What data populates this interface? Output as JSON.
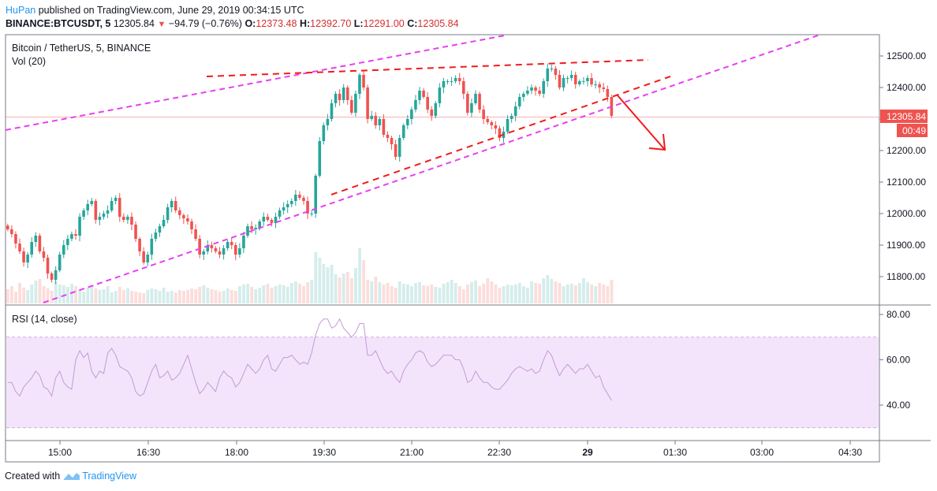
{
  "header": {
    "author": "HuPan",
    "published": "published on TradingView.com, June 29, 2019 00:34:15 UTC",
    "symbol": "BINANCE:BTCUSDT, 5",
    "last": "12305.84",
    "change": "−94.79 (−0.76%)",
    "o_label": "O:",
    "o": "12373.48",
    "h_label": "H:",
    "h": "12392.70",
    "l_label": "L:",
    "l": "12291.00",
    "c_label": "C:",
    "c": "12305.84"
  },
  "footer": {
    "created_with": "Created with",
    "brand": "TradingView"
  },
  "colors": {
    "up": "#26a69a",
    "down": "#ef5350",
    "pink_line": "#e83ff0",
    "red_line": "#f01b1b",
    "rsi_band": "#f3e4fb",
    "rsi_line": "#c49ad6"
  },
  "chart_data": [
    {
      "type": "candlestick",
      "title": "Bitcoin / TetherUS, 5, BINANCE",
      "volume_label": "Vol (20)",
      "price_axis": {
        "ticks": [
          "12500.00",
          "12400.00",
          "12300.00",
          "12200.00",
          "12100.00",
          "12000.00",
          "11900.00",
          "11800.00"
        ],
        "range": [
          11740,
          12560
        ]
      },
      "last_price_label": "12305.84",
      "countdown_label": "00:49",
      "time_axis": [
        "15:00",
        "16:30",
        "18:00",
        "19:30",
        "21:00",
        "22:30",
        "29",
        "01:30",
        "03:00",
        "04:30"
      ],
      "close_series": [
        11950,
        11935,
        11905,
        11880,
        11845,
        11870,
        11910,
        11930,
        11880,
        11860,
        11810,
        11790,
        11820,
        11870,
        11900,
        11920,
        11935,
        11930,
        11990,
        12010,
        12030,
        12040,
        11980,
        11990,
        12000,
        12010,
        12040,
        12050,
        11990,
        11980,
        11990,
        11965,
        11920,
        11880,
        11845,
        11870,
        11920,
        11940,
        11960,
        11980,
        12020,
        12040,
        12010,
        11995,
        11985,
        11975,
        11950,
        11920,
        11870,
        11880,
        11900,
        11890,
        11880,
        11870,
        11890,
        11910,
        11900,
        11870,
        11890,
        11930,
        11960,
        11950,
        11955,
        11975,
        11990,
        11980,
        11970,
        11990,
        12010,
        12020,
        12030,
        12040,
        12060,
        12050,
        12040,
        12000,
        12000,
        12120,
        12230,
        12280,
        12300,
        12350,
        12380,
        12360,
        12400,
        12360,
        12320,
        12380,
        12440,
        12400,
        12300,
        12310,
        12280,
        12300,
        12250,
        12240,
        12220,
        12180,
        12240,
        12280,
        12300,
        12330,
        12360,
        12390,
        12370,
        12330,
        12310,
        12350,
        12400,
        12420,
        12420,
        12420,
        12430,
        12420,
        12380,
        12320,
        12350,
        12380,
        12330,
        12300,
        12290,
        12280,
        12270,
        12240,
        12260,
        12300,
        12310,
        12340,
        12370,
        12380,
        12390,
        12400,
        12390,
        12380,
        12420,
        12460,
        12460,
        12440,
        12400,
        12430,
        12430,
        12440,
        12410,
        12420,
        12420,
        12430,
        12410,
        12410,
        12400,
        12395,
        12370,
        12310
      ],
      "volume_series": [
        18,
        22,
        15,
        26,
        20,
        17,
        24,
        29,
        31,
        22,
        19,
        16,
        28,
        24,
        23,
        21,
        25,
        22,
        17,
        15,
        20,
        23,
        19,
        17,
        18,
        22,
        14,
        16,
        21,
        17,
        19,
        16,
        15,
        14,
        13,
        17,
        19,
        18,
        16,
        20,
        15,
        16,
        14,
        17,
        16,
        17,
        19,
        18,
        21,
        23,
        20,
        18,
        17,
        15,
        16,
        19,
        17,
        16,
        22,
        24,
        25,
        21,
        18,
        20,
        23,
        25,
        20,
        22,
        24,
        23,
        21,
        26,
        28,
        25,
        22,
        27,
        30,
        65,
        58,
        50,
        46,
        49,
        37,
        33,
        38,
        40,
        32,
        45,
        70,
        55,
        30,
        28,
        34,
        27,
        24,
        26,
        22,
        20,
        28,
        25,
        24,
        22,
        26,
        27,
        23,
        22,
        24,
        21,
        20,
        25,
        27,
        30,
        26,
        22,
        18,
        24,
        27,
        29,
        22,
        25,
        32,
        28,
        24,
        20,
        22,
        24,
        23,
        24,
        26,
        22,
        20,
        28,
        26,
        25,
        32,
        36,
        31,
        28,
        26,
        22,
        24,
        25,
        23,
        26,
        32,
        27,
        24,
        22,
        26,
        24,
        22,
        30
      ],
      "series": [
        {
          "name": "RSI (14, close)",
          "values": [
            50,
            50,
            46,
            44,
            48,
            50,
            52,
            55,
            53,
            48,
            47,
            44,
            52,
            55,
            50,
            48,
            47,
            60,
            64,
            61,
            63,
            55,
            52,
            55,
            54,
            63,
            65,
            62,
            57,
            56,
            55,
            52,
            46,
            44,
            45,
            50,
            55,
            58,
            52,
            53,
            55,
            51,
            52,
            54,
            58,
            62,
            56,
            50,
            45,
            47,
            50,
            48,
            46,
            52,
            55,
            53,
            52,
            48,
            50,
            54,
            58,
            56,
            54,
            56,
            60,
            62,
            56,
            55,
            58,
            61,
            61,
            62,
            60,
            58,
            59,
            58,
            63,
            71,
            76,
            78,
            78,
            74,
            75,
            78,
            74,
            72,
            70,
            72,
            76,
            76,
            62,
            62,
            64,
            60,
            56,
            54,
            55,
            52,
            50,
            55,
            58,
            60,
            63,
            64,
            63,
            59,
            57,
            58,
            60,
            62,
            62,
            62,
            60,
            60,
            56,
            50,
            51,
            55,
            52,
            50,
            50,
            48,
            47,
            47,
            49,
            51,
            54,
            56,
            57,
            56,
            55,
            56,
            54,
            55,
            60,
            64,
            62,
            57,
            53,
            56,
            58,
            56,
            54,
            56,
            56,
            58,
            55,
            52,
            53,
            48,
            45,
            42
          ]
        }
      ],
      "rsi_axis": {
        "ticks": [
          "80.00",
          "60.00",
          "40.00"
        ],
        "range": [
          26,
          82
        ],
        "band": [
          30,
          70
        ]
      }
    }
  ]
}
